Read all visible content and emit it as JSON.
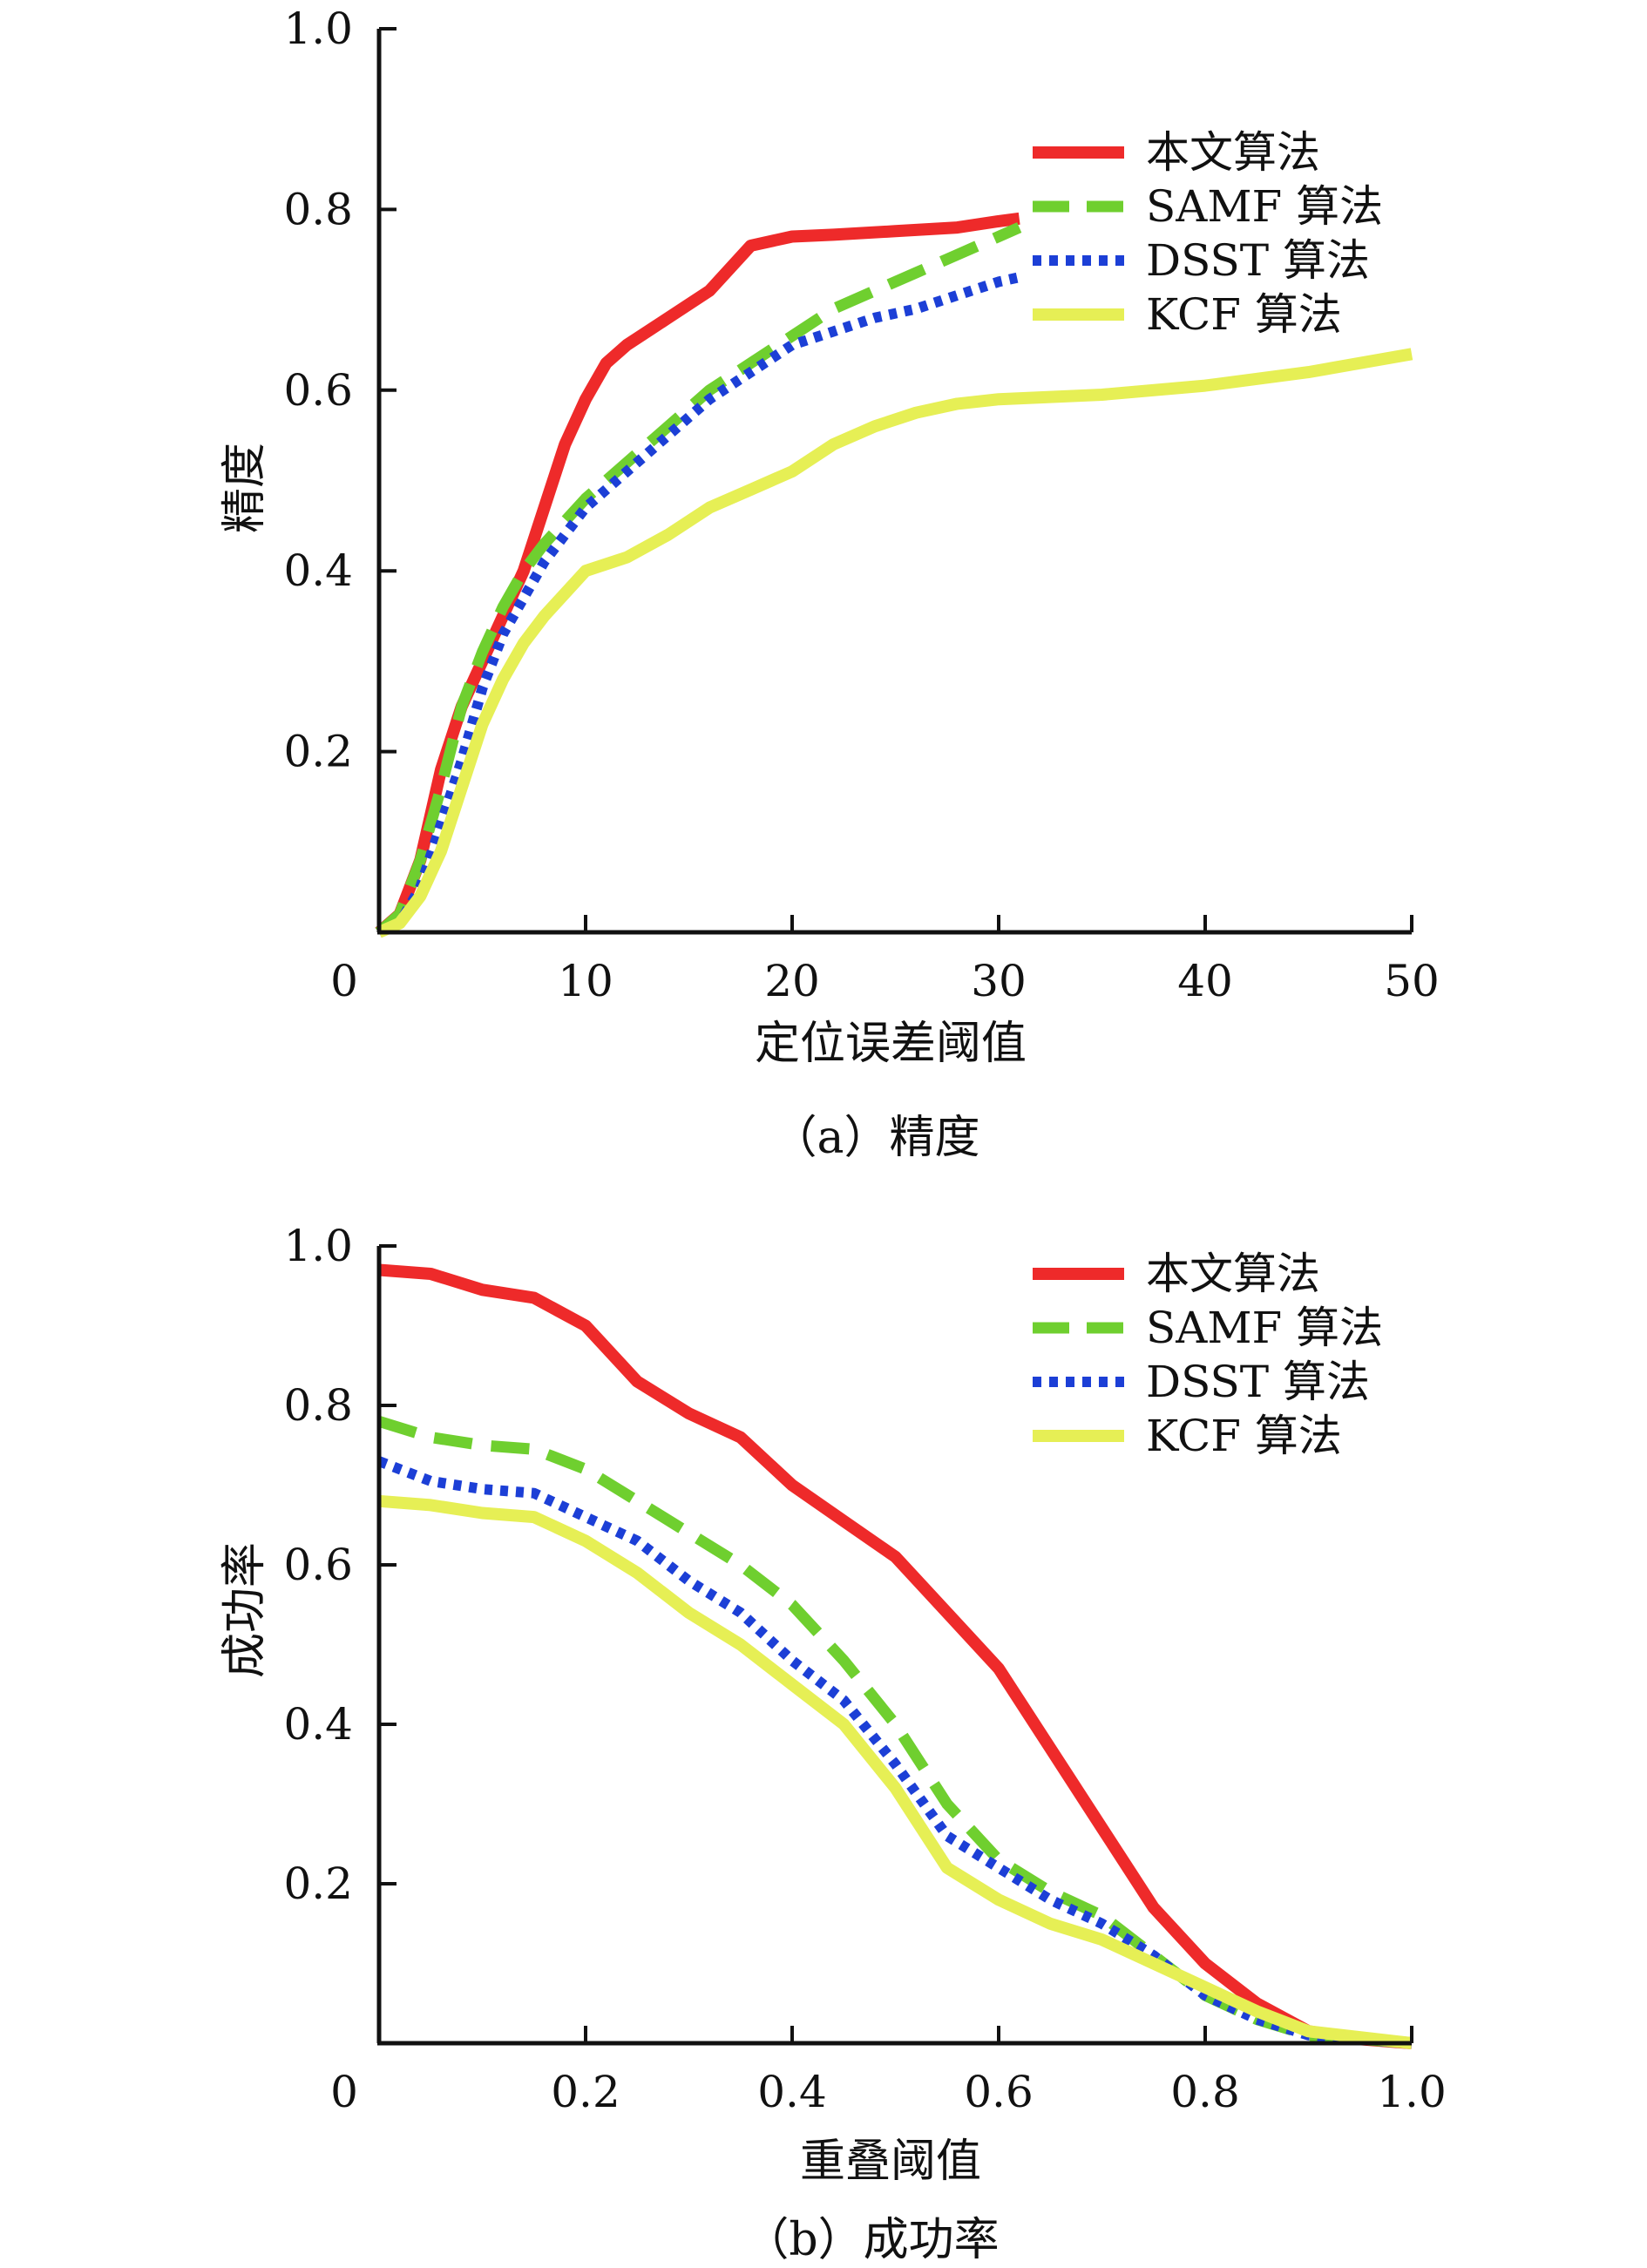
{
  "colors": {
    "本文算法": "#ee2a2a",
    "SAMF 算法": "#6fcf2f",
    "DSST 算法": "#1c3fd6",
    "KCF 算法": "#e6ef55",
    "axis": "#111111"
  },
  "chart_data": [
    {
      "type": "line",
      "caption": "（a）精度",
      "xlabel": "定位误差阈值",
      "ylabel": "精度",
      "xlim": [
        0,
        50
      ],
      "ylim": [
        0,
        1.0
      ],
      "xticks": [
        0,
        10,
        20,
        30,
        40,
        50
      ],
      "xtick_labels": [
        "0",
        "10",
        "20",
        "30",
        "40",
        "50"
      ],
      "yticks": [
        0.2,
        0.4,
        0.6,
        0.8,
        1.0
      ],
      "ytick_labels": [
        "0.2",
        "0.4",
        "0.6",
        "0.8",
        "1.0"
      ],
      "legend_position": "top-right",
      "grid": false,
      "series": [
        {
          "name": "本文算法",
          "style": "solid",
          "points": [
            [
              0,
              0
            ],
            [
              1,
              0.02
            ],
            [
              2,
              0.08
            ],
            [
              3,
              0.18
            ],
            [
              4,
              0.25
            ],
            [
              5,
              0.3
            ],
            [
              6,
              0.35
            ],
            [
              7,
              0.4
            ],
            [
              8,
              0.47
            ],
            [
              9,
              0.54
            ],
            [
              10,
              0.59
            ],
            [
              11,
              0.63
            ],
            [
              12,
              0.65
            ],
            [
              14,
              0.68
            ],
            [
              16,
              0.71
            ],
            [
              18,
              0.76
            ],
            [
              20,
              0.77
            ],
            [
              22,
              0.772
            ],
            [
              25,
              0.776
            ],
            [
              28,
              0.78
            ],
            [
              30,
              0.787
            ],
            [
              31,
              0.79
            ]
          ]
        },
        {
          "name": "SAMF 算法",
          "style": "dashed",
          "points": [
            [
              0,
              0
            ],
            [
              1,
              0.02
            ],
            [
              2,
              0.08
            ],
            [
              3,
              0.16
            ],
            [
              4,
              0.25
            ],
            [
              5,
              0.31
            ],
            [
              6,
              0.36
            ],
            [
              7,
              0.4
            ],
            [
              8,
              0.43
            ],
            [
              10,
              0.48
            ],
            [
              12,
              0.52
            ],
            [
              14,
              0.56
            ],
            [
              16,
              0.6
            ],
            [
              18,
              0.63
            ],
            [
              20,
              0.66
            ],
            [
              22,
              0.69
            ],
            [
              24,
              0.71
            ],
            [
              26,
              0.73
            ],
            [
              28,
              0.75
            ],
            [
              30,
              0.77
            ],
            [
              31,
              0.78
            ]
          ]
        },
        {
          "name": "DSST 算法",
          "style": "dotted",
          "points": [
            [
              0,
              0
            ],
            [
              1,
              0.01
            ],
            [
              2,
              0.05
            ],
            [
              3,
              0.12
            ],
            [
              4,
              0.19
            ],
            [
              5,
              0.27
            ],
            [
              6,
              0.33
            ],
            [
              7,
              0.37
            ],
            [
              8,
              0.41
            ],
            [
              10,
              0.47
            ],
            [
              12,
              0.51
            ],
            [
              14,
              0.55
            ],
            [
              16,
              0.59
            ],
            [
              18,
              0.62
            ],
            [
              20,
              0.65
            ],
            [
              22,
              0.665
            ],
            [
              24,
              0.68
            ],
            [
              26,
              0.69
            ],
            [
              28,
              0.705
            ],
            [
              30,
              0.72
            ],
            [
              31,
              0.725
            ]
          ]
        },
        {
          "name": "KCF 算法",
          "style": "solid",
          "points": [
            [
              0,
              0
            ],
            [
              1,
              0.01
            ],
            [
              2,
              0.04
            ],
            [
              3,
              0.09
            ],
            [
              4,
              0.16
            ],
            [
              5,
              0.23
            ],
            [
              6,
              0.28
            ],
            [
              7,
              0.32
            ],
            [
              8,
              0.35
            ],
            [
              10,
              0.4
            ],
            [
              12,
              0.415
            ],
            [
              14,
              0.44
            ],
            [
              16,
              0.47
            ],
            [
              18,
              0.49
            ],
            [
              20,
              0.51
            ],
            [
              22,
              0.54
            ],
            [
              24,
              0.56
            ],
            [
              26,
              0.575
            ],
            [
              28,
              0.585
            ],
            [
              30,
              0.59
            ],
            [
              35,
              0.595
            ],
            [
              40,
              0.605
            ],
            [
              45,
              0.62
            ],
            [
              50,
              0.64
            ]
          ]
        }
      ]
    },
    {
      "type": "line",
      "caption": "（b）成功率",
      "xlabel": "重叠阈值",
      "ylabel": "成功率",
      "xlim": [
        0,
        1.0
      ],
      "ylim": [
        0,
        1.0
      ],
      "xticks": [
        0,
        0.2,
        0.4,
        0.6,
        0.8,
        1.0
      ],
      "xtick_labels": [
        "0",
        "0.2",
        "0.4",
        "0.6",
        "0.8",
        "1.0"
      ],
      "yticks": [
        0.2,
        0.4,
        0.6,
        0.8,
        1.0
      ],
      "ytick_labels": [
        "0.2",
        "0.4",
        "0.6",
        "0.8",
        "1.0"
      ],
      "legend_position": "top-right",
      "grid": false,
      "series": [
        {
          "name": "本文算法",
          "style": "solid",
          "points": [
            [
              0,
              0.97
            ],
            [
              0.05,
              0.965
            ],
            [
              0.1,
              0.945
            ],
            [
              0.15,
              0.935
            ],
            [
              0.2,
              0.9
            ],
            [
              0.25,
              0.83
            ],
            [
              0.3,
              0.79
            ],
            [
              0.35,
              0.76
            ],
            [
              0.4,
              0.7
            ],
            [
              0.45,
              0.655
            ],
            [
              0.5,
              0.61
            ],
            [
              0.55,
              0.54
            ],
            [
              0.6,
              0.47
            ],
            [
              0.65,
              0.37
            ],
            [
              0.7,
              0.27
            ],
            [
              0.75,
              0.17
            ],
            [
              0.8,
              0.1
            ],
            [
              0.85,
              0.05
            ],
            [
              0.9,
              0.015
            ],
            [
              0.95,
              0.005
            ],
            [
              1.0,
              0.0
            ]
          ]
        },
        {
          "name": "SAMF 算法",
          "style": "dashed",
          "points": [
            [
              0,
              0.78
            ],
            [
              0.05,
              0.76
            ],
            [
              0.1,
              0.75
            ],
            [
              0.15,
              0.745
            ],
            [
              0.2,
              0.72
            ],
            [
              0.25,
              0.68
            ],
            [
              0.3,
              0.64
            ],
            [
              0.35,
              0.6
            ],
            [
              0.4,
              0.55
            ],
            [
              0.45,
              0.48
            ],
            [
              0.5,
              0.4
            ],
            [
              0.55,
              0.3
            ],
            [
              0.6,
              0.23
            ],
            [
              0.65,
              0.19
            ],
            [
              0.7,
              0.16
            ],
            [
              0.75,
              0.11
            ],
            [
              0.8,
              0.06
            ],
            [
              0.85,
              0.03
            ],
            [
              0.9,
              0.01
            ],
            [
              1.0,
              0.0
            ]
          ]
        },
        {
          "name": "DSST 算法",
          "style": "dotted",
          "points": [
            [
              0,
              0.73
            ],
            [
              0.05,
              0.705
            ],
            [
              0.1,
              0.695
            ],
            [
              0.15,
              0.69
            ],
            [
              0.2,
              0.66
            ],
            [
              0.25,
              0.63
            ],
            [
              0.3,
              0.58
            ],
            [
              0.35,
              0.54
            ],
            [
              0.4,
              0.48
            ],
            [
              0.45,
              0.43
            ],
            [
              0.5,
              0.35
            ],
            [
              0.55,
              0.26
            ],
            [
              0.6,
              0.22
            ],
            [
              0.65,
              0.18
            ],
            [
              0.7,
              0.15
            ],
            [
              0.75,
              0.11
            ],
            [
              0.8,
              0.06
            ],
            [
              0.85,
              0.03
            ],
            [
              0.9,
              0.01
            ],
            [
              1.0,
              0.0
            ]
          ]
        },
        {
          "name": "KCF 算法",
          "style": "solid",
          "points": [
            [
              0,
              0.68
            ],
            [
              0.05,
              0.675
            ],
            [
              0.1,
              0.665
            ],
            [
              0.15,
              0.66
            ],
            [
              0.2,
              0.63
            ],
            [
              0.25,
              0.59
            ],
            [
              0.3,
              0.54
            ],
            [
              0.35,
              0.5
            ],
            [
              0.4,
              0.45
            ],
            [
              0.45,
              0.4
            ],
            [
              0.5,
              0.32
            ],
            [
              0.55,
              0.22
            ],
            [
              0.6,
              0.18
            ],
            [
              0.65,
              0.15
            ],
            [
              0.7,
              0.13
            ],
            [
              0.75,
              0.1
            ],
            [
              0.8,
              0.07
            ],
            [
              0.85,
              0.04
            ],
            [
              0.9,
              0.015
            ],
            [
              1.0,
              0.0
            ]
          ]
        }
      ]
    }
  ]
}
